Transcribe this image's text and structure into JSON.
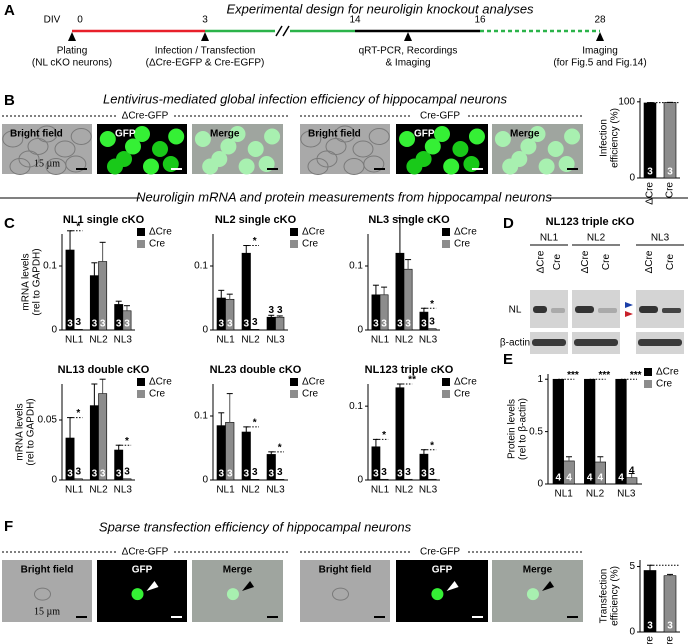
{
  "panels": {
    "A": {
      "letter": "A",
      "title": "Experimental design for neuroligin knockout analyses",
      "start_label": "DIV",
      "days": [
        0,
        3,
        14,
        16,
        28
      ],
      "events": [
        [
          "Plating",
          "(NL cKO neurons)"
        ],
        [
          "Infection / Transfection",
          "(ΔCre-EGFP & Cre-EGFP)"
        ],
        [
          "qRT-PCR, Recordings",
          "& Imaging"
        ],
        [
          "Imaging",
          "(for Fig.5 and Fig.14)"
        ]
      ]
    },
    "B": {
      "letter": "B",
      "title": "Lentivirus-mediated global infection efficiency of hippocampal neurons",
      "groups": [
        "ΔCre-GFP",
        "Cre-GFP"
      ],
      "image_labels": [
        "Bright field",
        "GFP",
        "Merge"
      ],
      "scale": "15 µm"
    },
    "section_title": "Neuroligin mRNA and protein measurements from hippocampal neurons",
    "C": {
      "letter": "C"
    },
    "D": {
      "letter": "D",
      "title": "NL123 triple cKO",
      "genes": [
        "NL1",
        "NL2",
        "NL3"
      ],
      "lanes": [
        "ΔCre",
        "Cre"
      ],
      "rows": [
        "NL",
        "β-actin"
      ]
    },
    "E": {
      "letter": "E"
    },
    "F": {
      "letter": "F",
      "title": "Sparse transfection efficiency of hippocampal neurons",
      "groups": [
        "ΔCre-GFP",
        "Cre-GFP"
      ],
      "image_labels": [
        "Bright field",
        "GFP",
        "Merge"
      ],
      "scale": "15 µm"
    }
  },
  "chart_data": [
    {
      "type": "bar",
      "ylabel": [
        "Infection",
        "efficiency (%)"
      ],
      "categories": [
        "ΔCre",
        "Cre"
      ],
      "values": [
        98.5,
        99
      ],
      "errors": [
        0.5,
        0.3
      ],
      "colors": [
        "#000000",
        "#8c8c8c"
      ],
      "n": [
        3,
        3
      ],
      "ylim": [
        0,
        105
      ],
      "yticks": [
        0,
        100
      ]
    },
    {
      "type": "bar",
      "title": "NL1 single cKO",
      "ylabel": [
        "mRNA levels",
        "(rel to GAPDH)"
      ],
      "categories": [
        "NL1",
        "NL2",
        "NL3"
      ],
      "ylim": [
        0,
        0.15
      ],
      "yticks": [
        0,
        0.1
      ],
      "legend": true,
      "significance": [
        "*",
        null,
        null
      ],
      "series": [
        {
          "name": "ΔCre",
          "color": "#000000",
          "values": [
            0.125,
            0.085,
            0.04
          ],
          "errors": [
            0.03,
            0.02,
            0.005
          ],
          "n": [
            3,
            3,
            3
          ]
        },
        {
          "name": "Cre",
          "color": "#8c8c8c",
          "values": [
            0.001,
            0.107,
            0.03
          ],
          "errors": [
            0,
            0.03,
            0.008
          ],
          "n": [
            3,
            3,
            3
          ]
        }
      ]
    },
    {
      "type": "bar",
      "title": "NL2 single cKO",
      "categories": [
        "NL1",
        "NL2",
        "NL3"
      ],
      "ylim": [
        0,
        0.15
      ],
      "yticks": [
        0,
        0.1
      ],
      "legend": true,
      "significance": [
        null,
        "*",
        null
      ],
      "series": [
        {
          "name": "ΔCre",
          "color": "#000000",
          "values": [
            0.05,
            0.12,
            0.02
          ],
          "errors": [
            0.012,
            0.012,
            0.003
          ],
          "n": [
            3,
            3,
            3
          ]
        },
        {
          "name": "Cre",
          "color": "#8c8c8c",
          "values": [
            0.048,
            0.001,
            0.02
          ],
          "errors": [
            0.008,
            0,
            0.002
          ],
          "n": [
            3,
            3,
            3
          ]
        }
      ]
    },
    {
      "type": "bar",
      "title": "NL3 single cKO",
      "categories": [
        "NL1",
        "NL2",
        "NL3"
      ],
      "ylim": [
        0,
        0.15
      ],
      "yticks": [
        0,
        0.1
      ],
      "legend": true,
      "significance": [
        null,
        null,
        "*"
      ],
      "series": [
        {
          "name": "ΔCre",
          "color": "#000000",
          "values": [
            0.055,
            0.12,
            0.028
          ],
          "errors": [
            0.015,
            0.055,
            0.006
          ],
          "n": [
            3,
            3,
            3
          ]
        },
        {
          "name": "Cre",
          "color": "#8c8c8c",
          "values": [
            0.055,
            0.095,
            0.002
          ],
          "errors": [
            0.012,
            0.015,
            0
          ],
          "n": [
            3,
            3,
            3
          ]
        }
      ]
    },
    {
      "type": "bar",
      "title": "NL13 double cKO",
      "ylabel": [
        "mRNA levels",
        "(rel to GAPDH)"
      ],
      "categories": [
        "NL1",
        "NL2",
        "NL3"
      ],
      "ylim": [
        0,
        0.08
      ],
      "yticks": [
        0,
        0.05
      ],
      "legend": true,
      "significance": [
        "*",
        null,
        "*"
      ],
      "series": [
        {
          "name": "ΔCre",
          "color": "#000000",
          "values": [
            0.035,
            0.062,
            0.025
          ],
          "errors": [
            0.017,
            0.018,
            0.004
          ],
          "n": [
            3,
            3,
            3
          ]
        },
        {
          "name": "Cre",
          "color": "#8c8c8c",
          "values": [
            0.001,
            0.072,
            0.001
          ],
          "errors": [
            0,
            0.012,
            0
          ],
          "n": [
            3,
            3,
            3
          ]
        }
      ]
    },
    {
      "type": "bar",
      "title": "NL23 double cKO",
      "categories": [
        "NL1",
        "NL2",
        "NL3"
      ],
      "ylim": [
        0,
        0.15
      ],
      "yticks": [
        0,
        0.1
      ],
      "legend": true,
      "significance": [
        null,
        "*",
        "*"
      ],
      "series": [
        {
          "name": "ΔCre",
          "color": "#000000",
          "values": [
            0.085,
            0.075,
            0.04
          ],
          "errors": [
            0.02,
            0.008,
            0.004
          ],
          "n": [
            3,
            3,
            3
          ]
        },
        {
          "name": "Cre",
          "color": "#8c8c8c",
          "values": [
            0.09,
            0.001,
            0.001
          ],
          "errors": [
            0.045,
            0,
            0
          ],
          "n": [
            3,
            3,
            3
          ]
        }
      ]
    },
    {
      "type": "bar",
      "title": "NL123 triple cKO",
      "categories": [
        "NL1",
        "NL2",
        "NL3"
      ],
      "ylim": [
        0,
        0.13
      ],
      "yticks": [
        0,
        0.1
      ],
      "legend": true,
      "significance": [
        "*",
        "**",
        "*"
      ],
      "series": [
        {
          "name": "ΔCre",
          "color": "#000000",
          "values": [
            0.045,
            0.125,
            0.035
          ],
          "errors": [
            0.01,
            0.005,
            0.006
          ],
          "n": [
            3,
            3,
            3
          ]
        },
        {
          "name": "Cre",
          "color": "#8c8c8c",
          "values": [
            0.001,
            0.001,
            0.001
          ],
          "errors": [
            0,
            0,
            0
          ],
          "n": [
            3,
            3,
            3
          ]
        }
      ]
    },
    {
      "type": "bar",
      "ylabel": [
        "Protein levels",
        "(rel to β-actin)"
      ],
      "categories": [
        "NL1",
        "NL2",
        "NL3"
      ],
      "ylim": [
        0,
        1.05
      ],
      "yticks": [
        0,
        0.5,
        1
      ],
      "legend": true,
      "significance": [
        "***",
        "***",
        "***"
      ],
      "series": [
        {
          "name": "ΔCre",
          "color": "#000000",
          "values": [
            1,
            1,
            1
          ],
          "errors": [
            0,
            0,
            0
          ],
          "n": [
            4,
            4,
            4
          ]
        },
        {
          "name": "Cre",
          "color": "#8c8c8c",
          "values": [
            0.22,
            0.21,
            0.06
          ],
          "errors": [
            0.04,
            0.05,
            0.04
          ],
          "n": [
            4,
            4,
            4
          ]
        }
      ]
    },
    {
      "type": "bar",
      "ylabel": [
        "Transfection",
        "efficiency (%)"
      ],
      "categories": [
        "ΔCre",
        "Cre"
      ],
      "values": [
        4.7,
        4.3
      ],
      "errors": [
        0.4,
        0.1
      ],
      "colors": [
        "#000000",
        "#8c8c8c"
      ],
      "n": [
        3,
        3
      ],
      "ylim": [
        0,
        5.5
      ],
      "yticks": [
        0,
        5
      ]
    }
  ]
}
